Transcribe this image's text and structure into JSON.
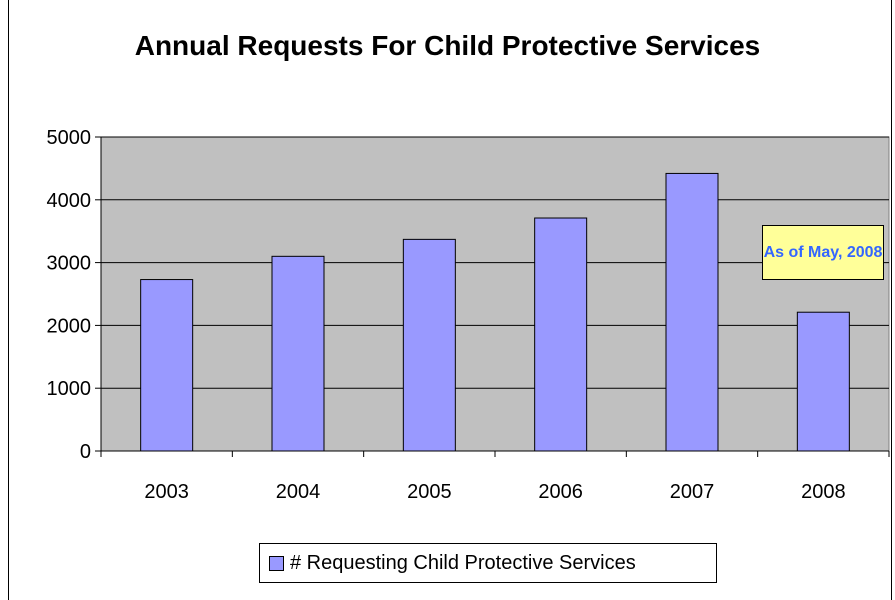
{
  "chart_data": {
    "type": "bar",
    "title": "Annual Requests For Child Protective Services",
    "categories": [
      "2003",
      "2004",
      "2005",
      "2006",
      "2007",
      "2008"
    ],
    "series": [
      {
        "name": "# Requesting Child Protective Services",
        "values": [
          2730,
          3100,
          3370,
          3710,
          4420,
          2210
        ]
      }
    ],
    "ylim": [
      0,
      5000
    ],
    "yticks": [
      "0",
      "1000",
      "2000",
      "3000",
      "4000",
      "5000"
    ],
    "xlabel": "",
    "ylabel": "",
    "grid": true,
    "legend": "bottom",
    "annotation": {
      "text": "As of May, 2008",
      "category": "2008"
    },
    "colors": {
      "bar": "#9999ff",
      "plot_background": "#c0c0c0",
      "annotation_background": "#ffff99",
      "annotation_text": "#3366ff"
    }
  }
}
